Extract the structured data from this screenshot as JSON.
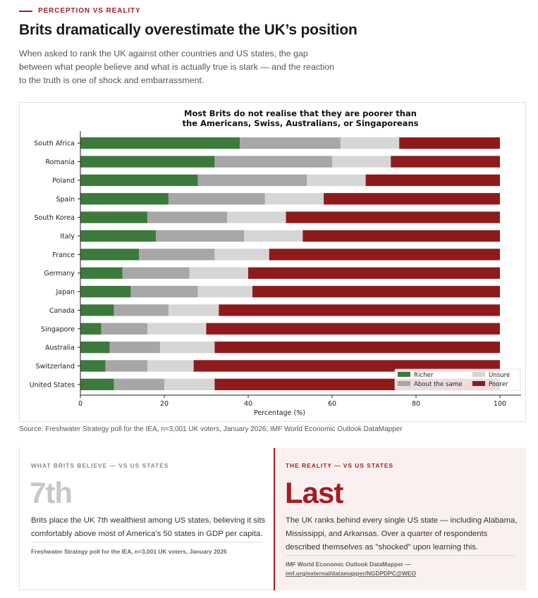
{
  "kicker": "PERCEPTION VS REALITY",
  "headline": "Brits dramatically overestimate the UK’s position",
  "subhead": "When asked to rank the UK against other countries and US states, the gap between what people believe and what is actually true is stark — and the reaction to the truth is one of shock and embarrassment.",
  "colors": {
    "accent": "#a51c20",
    "richer": "#3c7a3b",
    "same": "#a7a7a7",
    "unsure": "#d6d6d6",
    "poorer": "#8f1a1c"
  },
  "chart_data": {
    "type": "bar",
    "orientation": "horizontal-stacked",
    "title_lines": [
      "Most Brits do not realise that they are poorer than",
      "the Americans, Swiss, Australians, or Singaporeans"
    ],
    "xlabel": "Percentage (%)",
    "ylabel": "",
    "xlim": [
      0,
      100
    ],
    "xticks": [
      0,
      20,
      40,
      60,
      80,
      100
    ],
    "grid": false,
    "legend_position": "bottom-right",
    "categories": [
      "South Africa",
      "Romania",
      "Poland",
      "Spain",
      "South Korea",
      "Italy",
      "France",
      "Germany",
      "Japan",
      "Canada",
      "Singapore",
      "Australia",
      "Switzerland",
      "United States"
    ],
    "series": [
      {
        "name": "Richer",
        "values": [
          38,
          32,
          28,
          21,
          16,
          18,
          14,
          10,
          12,
          8,
          5,
          7,
          6,
          8
        ]
      },
      {
        "name": "About the same",
        "values": [
          24,
          28,
          26,
          23,
          19,
          21,
          18,
          16,
          16,
          13,
          11,
          12,
          10,
          12
        ]
      },
      {
        "name": "Unsure",
        "values": [
          14,
          14,
          14,
          14,
          14,
          14,
          13,
          14,
          13,
          12,
          14,
          13,
          11,
          12
        ]
      },
      {
        "name": "Poorer",
        "values": [
          24,
          26,
          32,
          42,
          51,
          47,
          55,
          60,
          59,
          67,
          70,
          68,
          73,
          68
        ]
      }
    ]
  },
  "source": "Source: Freshwater Strategy poll for the IEA, n=3,001 UK voters, January 2026; IMF World Economic Outlook DataMapper",
  "believe": {
    "label": "WHAT BRITS BELIEVE — VS US STATES",
    "big": "7th",
    "body": "Brits place the UK 7th wealthiest among US states, believing it sits comfortably above most of America's 50 states in GDP per capita.",
    "source": "Freshwater Strategy poll for the IEA, n=3,001 UK voters, January 2026"
  },
  "reality": {
    "label": "THE REALITY — VS US STATES",
    "big": "Last",
    "body": "The UK ranks behind every single US state — including Alabama, Mississippi, and Arkansas. Over a quarter of respondents described themselves as \"shocked\" upon learning this.",
    "source": "IMF World Economic Outlook DataMapper —",
    "link": "imf.org/external/datamapper/NGDPDPC@WEO"
  }
}
